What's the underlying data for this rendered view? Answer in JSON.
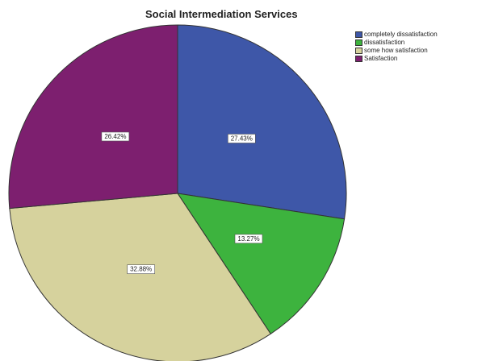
{
  "chart_data": {
    "type": "pie",
    "title": "Social Intermediation Services",
    "categories": [
      "completely dissatisfaction",
      "dissatisfaction",
      "some how satisfaction",
      "Satisfaction"
    ],
    "values": [
      27.43,
      13.27,
      32.88,
      26.42
    ],
    "value_labels": [
      "27.43%",
      "13.27%",
      "32.88%",
      "26.42%"
    ],
    "colors": [
      "#3e57a8",
      "#3db33e",
      "#d6d29d",
      "#7d1f6f"
    ],
    "start_angle_deg": 0,
    "direction": "clockwise",
    "legend": {
      "position": "top-right",
      "entries": [
        "completely dissatisfaction",
        "dissatisfaction",
        "some how satisfaction",
        "Satisfaction"
      ]
    }
  }
}
